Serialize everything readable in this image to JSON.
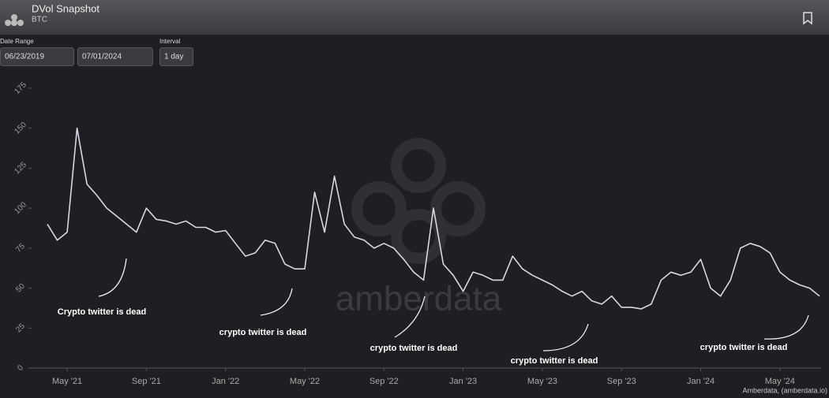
{
  "header": {
    "title": "DVol Snapshot",
    "subtitle": "BTC"
  },
  "controls": {
    "date_range_label": "Date Range",
    "start_date": "06/23/2019",
    "end_date": "07/01/2024",
    "interval_label": "Interval",
    "interval": "1 day"
  },
  "chart_data": {
    "type": "line",
    "color": "#d8d8e0",
    "categories": [
      null,
      null,
      "May '21",
      null,
      null,
      null,
      null,
      null,
      null,
      null,
      "Sep '21",
      null,
      null,
      null,
      null,
      null,
      null,
      null,
      "Jan '22",
      null,
      null,
      null,
      null,
      null,
      null,
      null,
      "May '22",
      null,
      null,
      null,
      null,
      null,
      null,
      null,
      "Sep '22",
      null,
      null,
      null,
      null,
      null,
      null,
      null,
      "Jan '23",
      null,
      null,
      null,
      null,
      null,
      null,
      null,
      "May '23",
      null,
      null,
      null,
      null,
      null,
      null,
      null,
      "Sep '23",
      null,
      null,
      null,
      null,
      null,
      null,
      null,
      "Jan '24",
      null,
      null,
      null,
      null,
      null,
      null,
      null,
      "May '24",
      null,
      null,
      null,
      null
    ],
    "values": [
      90,
      80,
      85,
      150,
      115,
      108,
      100,
      95,
      90,
      85,
      100,
      93,
      92,
      90,
      92,
      88,
      88,
      85,
      86,
      78,
      70,
      72,
      80,
      78,
      65,
      62,
      62,
      110,
      85,
      120,
      90,
      82,
      80,
      75,
      78,
      75,
      68,
      60,
      55,
      100,
      65,
      58,
      48,
      60,
      58,
      55,
      55,
      70,
      62,
      58,
      55,
      52,
      48,
      45,
      48,
      42,
      40,
      45,
      38,
      38,
      37,
      40,
      55,
      60,
      58,
      60,
      68,
      50,
      45,
      55,
      75,
      78,
      76,
      72,
      60,
      55,
      52,
      50,
      45
    ],
    "ylim": [
      0,
      175
    ],
    "yticks": [
      0,
      25,
      50,
      75,
      100,
      125,
      150,
      175
    ],
    "grid": false,
    "annotations": [
      "Crypto twitter is dead",
      "crypto twitter is dead",
      "crypto twitter is dead",
      "crypto twitter is dead",
      "crypto twitter is dead"
    ],
    "watermark": "amberdata",
    "credit": "Amberdata, (amberdata.io)"
  }
}
